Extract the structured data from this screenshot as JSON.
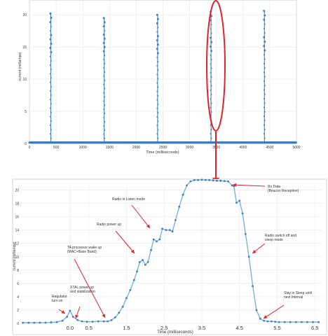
{
  "chart_data": [
    {
      "type": "line",
      "xlabel": "Time (milliseconds)",
      "ylabel": "current (milliamps)",
      "xlim": [
        0,
        5000
      ],
      "ylim": [
        0,
        21
      ],
      "xticks": [
        0,
        500,
        1000,
        1500,
        2000,
        2500,
        3000,
        3500,
        4000,
        4500,
        5000
      ],
      "yticks": [
        0,
        5,
        10,
        15,
        20
      ],
      "grid": true,
      "baseline": 0.15,
      "spikes": [
        {
          "x": 400,
          "peak": 20.2
        },
        {
          "x": 1400,
          "peak": 19.5
        },
        {
          "x": 2400,
          "peak": 20.0
        },
        {
          "x": 3400,
          "peak": 20.5
        },
        {
          "x": 4400,
          "peak": 20.6
        }
      ]
    },
    {
      "type": "line",
      "xlabel": "Time (milliseconds)",
      "ylabel": "current (milliamps)",
      "xlim": [
        -1.3,
        6.7
      ],
      "ylim": [
        0,
        21
      ],
      "xticks": [
        0.0,
        0.5,
        1.5,
        2.5,
        3.5,
        4.5,
        5.5,
        6.5
      ],
      "yticks": [
        0,
        2,
        4,
        6,
        8,
        10,
        12,
        14,
        16,
        18,
        20
      ],
      "grid": true,
      "series": [
        {
          "x": [
            -1.25,
            -1.1,
            -0.95,
            -0.8,
            -0.65,
            -0.5,
            -0.35,
            -0.2,
            -0.08,
            0.0,
            0.08,
            0.2,
            0.32,
            0.45,
            0.6,
            0.75,
            0.9,
            1.0,
            1.1,
            1.2,
            1.3,
            1.4,
            1.5,
            1.6,
            1.7,
            1.78,
            1.85,
            1.93,
            2.0,
            2.07,
            2.15,
            2.22,
            2.3,
            2.38,
            2.45,
            2.55,
            2.65,
            2.72,
            2.8,
            2.9,
            3.0,
            3.1,
            3.2,
            3.3,
            3.4,
            3.5,
            3.6,
            3.7,
            3.8,
            3.9,
            4.0,
            4.1,
            4.2,
            4.3,
            4.35,
            4.42,
            4.5,
            4.58,
            4.66,
            4.75,
            4.85,
            4.95,
            5.05,
            5.15,
            5.25,
            5.35,
            5.45,
            5.55,
            5.7,
            5.85,
            6.0,
            6.15,
            6.3,
            6.45,
            6.6
          ],
          "y": [
            0.1,
            0.1,
            0.1,
            0.12,
            0.12,
            0.15,
            0.2,
            0.4,
            1.0,
            1.9,
            1.0,
            0.5,
            0.3,
            0.25,
            0.25,
            0.3,
            0.3,
            0.3,
            0.5,
            0.9,
            1.6,
            2.5,
            3.8,
            5.0,
            6.5,
            7.8,
            9.2,
            9.5,
            8.8,
            9.2,
            11.0,
            12.6,
            12.3,
            12.6,
            14.2,
            14.0,
            14.0,
            13.8,
            15.5,
            17.5,
            19.3,
            20.7,
            21.3,
            21.5,
            21.5,
            21.55,
            21.5,
            21.5,
            21.45,
            21.4,
            21.4,
            21.35,
            21.3,
            20.7,
            20.6,
            18.1,
            18.4,
            16.5,
            13.4,
            10.0,
            5.6,
            2.0,
            0.7,
            0.4,
            0.3,
            0.3,
            0.25,
            0.2,
            0.2,
            0.2,
            0.2,
            0.2,
            0.2,
            0.2,
            0.2
          ]
        }
      ],
      "annotations": [
        {
          "text": [
            "Regulator",
            "turn on"
          ]
        },
        {
          "text": [
            "XTAL power up",
            "and stabilization"
          ]
        },
        {
          "text": [
            "TA processor wake up",
            "(MAC+Base Band)"
          ]
        },
        {
          "text": [
            "Radio power up"
          ]
        },
        {
          "text": [
            "Radio in Listen mode"
          ]
        },
        {
          "text": [
            "Rx Data",
            "(Beacon Reception)"
          ]
        },
        {
          "text": [
            "Radio switch off and",
            "sleep mode"
          ]
        },
        {
          "text": [
            "Stay in Sleep until",
            "next Interval"
          ]
        }
      ]
    }
  ],
  "colors": {
    "line": "#3f7fba",
    "line_light": "#7ab3d9",
    "highlight": "#e0222b",
    "grid": "#e6e6e6",
    "axis": "#555555",
    "text": "#333333"
  }
}
